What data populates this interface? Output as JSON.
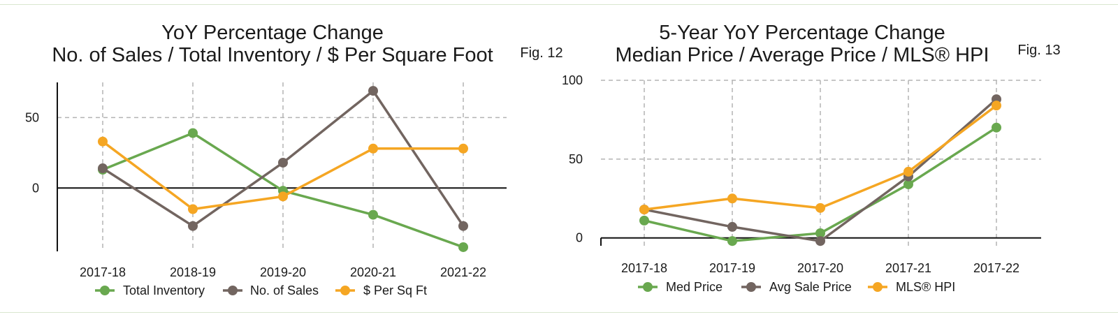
{
  "colors": {
    "green": "#69a84f",
    "brown": "#726560",
    "orange": "#f5a623",
    "grid": "#b3b3b3",
    "axis": "#111111"
  },
  "chart_data": [
    {
      "type": "line",
      "title": "YoY Percentage Change",
      "subtitle": "No. of Sales / Total Inventory /  $ Per Square Foot",
      "figure_label": "Fig. 12",
      "x": [
        "2017-18",
        "2018-19",
        "2019-20",
        "2020-21",
        "2021-22"
      ],
      "ylim": [
        -45,
        75
      ],
      "yticks": [
        0,
        50
      ],
      "grid": true,
      "legend": "bottom",
      "series": [
        {
          "name": "Total Inventory",
          "color": "#69a84f",
          "values": [
            13,
            39,
            -2,
            -19,
            -42
          ]
        },
        {
          "name": "No. of Sales",
          "color": "#726560",
          "values": [
            14,
            -27,
            18,
            69,
            -27
          ]
        },
        {
          "name": "$ Per Sq Ft",
          "color": "#f5a623",
          "values": [
            33,
            -15,
            -6,
            28,
            28
          ]
        }
      ]
    },
    {
      "type": "line",
      "title": "5-Year YoY Percentage Change",
      "subtitle": "Median Price / Average Price / MLS® HPI",
      "figure_label": "Fig. 13",
      "x": [
        "2017-18",
        "2017-19",
        "2017-20",
        "2017-21",
        "2017-22"
      ],
      "ylim": [
        -5,
        100
      ],
      "yticks": [
        0,
        50,
        100
      ],
      "grid": true,
      "legend": "bottom",
      "series": [
        {
          "name": "Med Price",
          "color": "#69a84f",
          "values": [
            11,
            -2,
            3,
            34,
            70
          ]
        },
        {
          "name": "Avg Sale Price",
          "color": "#726560",
          "values": [
            18,
            7,
            -2,
            39,
            88
          ]
        },
        {
          "name": "MLS® HPI",
          "color": "#f5a623",
          "values": [
            18,
            25,
            19,
            42,
            84
          ]
        }
      ]
    }
  ]
}
